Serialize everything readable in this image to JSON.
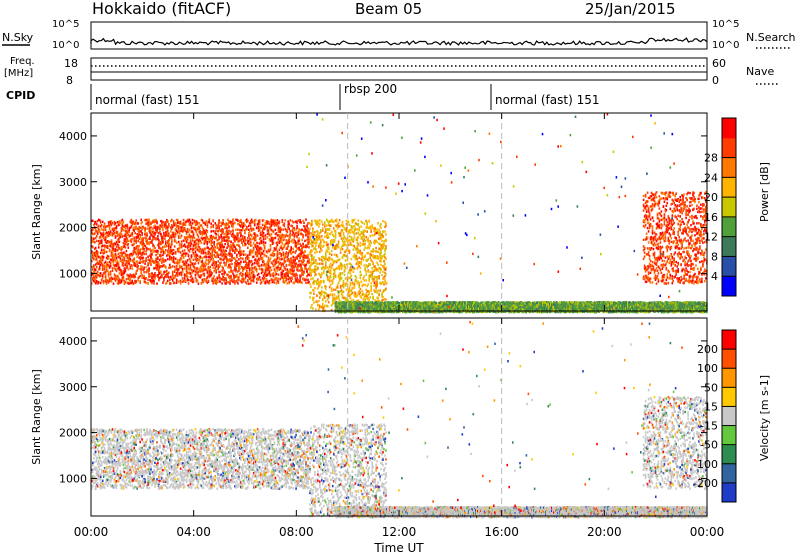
{
  "header": {
    "radar": "Hokkaido (fitACF)",
    "beam": "Beam 05",
    "date": "25/Jan/2015"
  },
  "top_panels": {
    "nsky_label": "N.Sky",
    "nsky_ticks": [
      "10^5",
      "10^0"
    ],
    "nsearch_label": "N.Search",
    "freq_label": "Freq.",
    "freq_unit": "[MHz]",
    "freq_ticks": [
      "18",
      "8"
    ],
    "nave_label": "Nave",
    "nave_ticks": [
      "60",
      "0"
    ],
    "cpid_label": "CPID",
    "cpid_segments": [
      {
        "label": "normal (fast) 151",
        "start": 0,
        "end": 10
      },
      {
        "label": "rbsp 200",
        "start": 10,
        "end": 16
      },
      {
        "label": "normal (fast) 151",
        "start": 16,
        "end": 24
      }
    ]
  },
  "chart_data": [
    {
      "type": "heatmap",
      "title": "",
      "quantity": "Power",
      "xlabel": "",
      "ylabel": "Slant Range [km]",
      "xlim": [
        0,
        24
      ],
      "ylim": [
        180,
        4500
      ],
      "yticks": [
        1000,
        2000,
        3000,
        4000
      ],
      "colorbar": {
        "label": "Power [dB]",
        "ticks": [
          "4",
          "8",
          "12",
          "16",
          "20",
          "24",
          "28"
        ],
        "colors": [
          "#0000ff",
          "#2850a8",
          "#3c7a5a",
          "#50a03c",
          "#c8c800",
          "#ffb400",
          "#ff7800",
          "#ff3c00",
          "#ff0000"
        ]
      },
      "regions": [
        {
          "name": "morning echo band",
          "t_start": 0,
          "t_end": 8.5,
          "range": [
            800,
            2200
          ],
          "value_db": 26
        },
        {
          "name": "descending band",
          "t_start": 8.5,
          "t_end": 11.5,
          "range": [
            200,
            2200
          ],
          "value_db": 18
        },
        {
          "name": "near range",
          "t_start": 9.5,
          "t_end": 24,
          "range": [
            180,
            400
          ],
          "value_db": 12
        },
        {
          "name": "evening echo band",
          "t_start": 21.5,
          "t_end": 24,
          "range": [
            800,
            2800
          ],
          "value_db": 26
        }
      ]
    },
    {
      "type": "heatmap",
      "title": "",
      "quantity": "Velocity",
      "xlabel": "Time UT",
      "ylabel": "Slant Range [km]",
      "xlim": [
        0,
        24
      ],
      "ylim": [
        180,
        4500
      ],
      "yticks": [
        1000,
        2000,
        3000,
        4000
      ],
      "xticks": [
        "00:00",
        "04:00",
        "08:00",
        "12:00",
        "16:00",
        "20:00",
        "00:00"
      ],
      "colorbar": {
        "label": "Velocity [m s-1]",
        "ticks": [
          "200",
          "100",
          "50",
          "15",
          "-15",
          "-50",
          "-100",
          "-200"
        ],
        "colors": [
          "#1e3cc8",
          "#3264a0",
          "#2d8c50",
          "#64c83c",
          "#c8c8c8",
          "#ffc800",
          "#ff9600",
          "#ff5000",
          "#ff0000"
        ]
      },
      "regions": [
        {
          "name": "morning ground scatter",
          "t_start": 0,
          "t_end": 8.5,
          "range": [
            800,
            2100
          ],
          "value_ms": 0
        },
        {
          "name": "descending band",
          "t_start": 8.5,
          "t_end": 11.5,
          "range": [
            200,
            2200
          ],
          "value_ms": 0
        },
        {
          "name": "near range",
          "t_start": 9.5,
          "t_end": 24,
          "range": [
            180,
            400
          ],
          "value_ms": 30
        },
        {
          "name": "evening ground scatter",
          "t_start": 21.5,
          "t_end": 24,
          "range": [
            800,
            2800
          ],
          "value_ms": 0
        }
      ]
    }
  ]
}
